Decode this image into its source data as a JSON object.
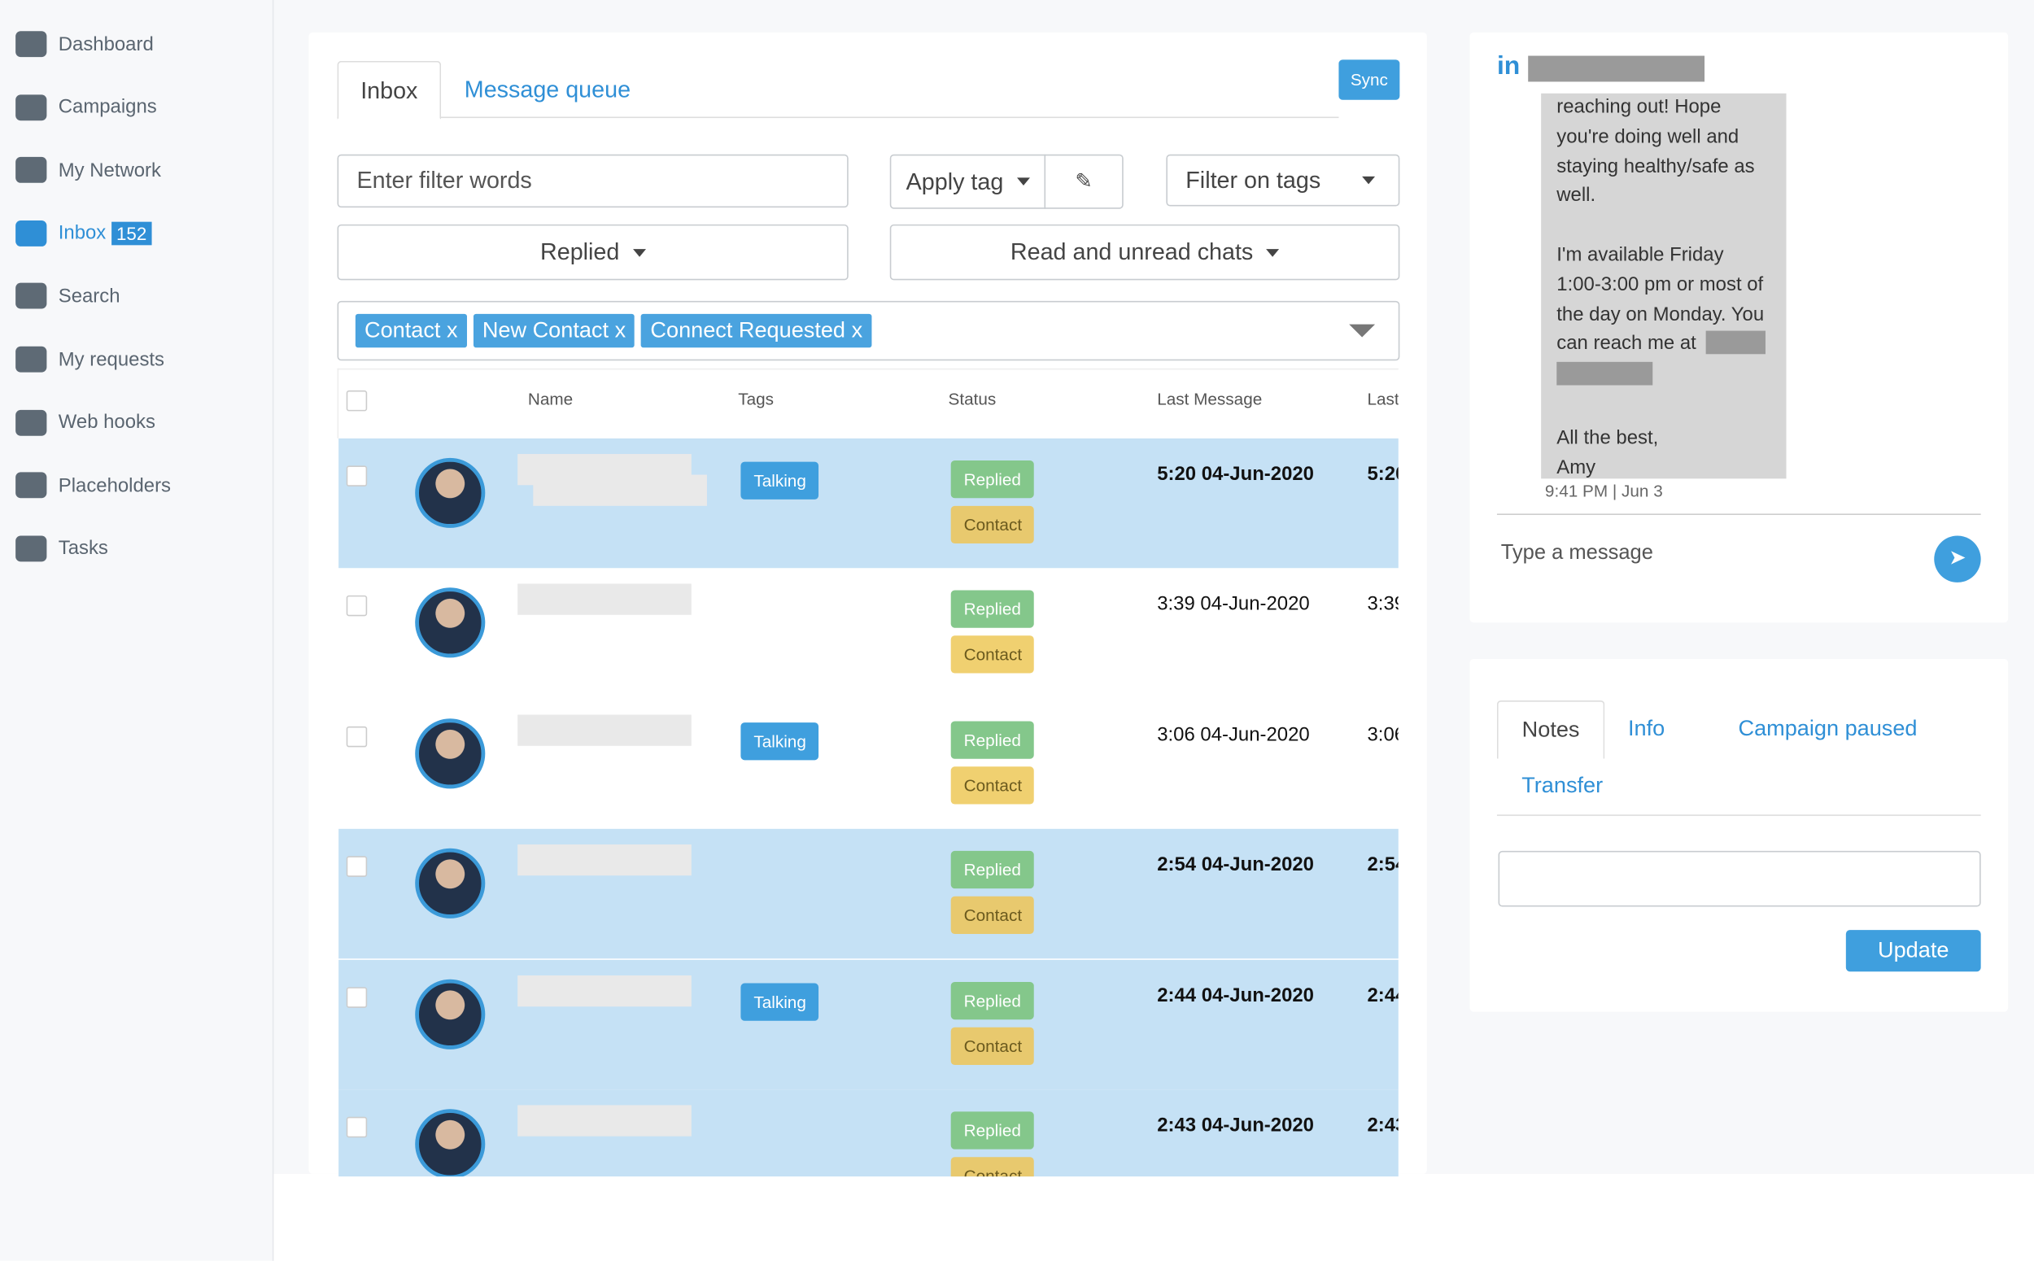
{
  "sidebar": {
    "items": [
      "Dashboard",
      "Campaigns",
      "My Network",
      "Inbox",
      "Search",
      "My requests",
      "Web hooks",
      "Placeholders",
      "Tasks"
    ],
    "inbox_count": "152"
  },
  "inbox": {
    "tabs": [
      "Inbox",
      "Message queue"
    ],
    "sync": "Sync",
    "filter_placeholder": "Enter filter words",
    "apply_tag": "Apply tag",
    "filter_tags": "Filter on tags",
    "replied_filter": "Replied",
    "read_filter": "Read and unread chats",
    "selected_tags": [
      "Contact",
      "New Contact",
      "Connect Requested"
    ],
    "tag_remove": "x",
    "columns": [
      "Name",
      "Tags",
      "Status",
      "Last Message",
      "Last"
    ],
    "rows": [
      {
        "tag": "Talking",
        "status": [
          "Replied",
          "Contact"
        ],
        "last_message": "5:20 04-Jun-2020",
        "highlighted": true
      },
      {
        "tag": null,
        "status": [
          "Replied",
          "Contact"
        ],
        "last_message": "3:39 04-Jun-2020",
        "highlighted": false
      },
      {
        "tag": "Talking",
        "status": [
          "Replied",
          "Contact"
        ],
        "last_message": "3:06 04-Jun-2020",
        "highlighted": false
      },
      {
        "tag": null,
        "status": [
          "Replied",
          "Contact"
        ],
        "last_message": "2:54 04-Jun-2020",
        "highlighted": true
      },
      {
        "tag": "Talking",
        "status": [
          "Replied",
          "Contact"
        ],
        "last_message": "2:44 04-Jun-2020",
        "highlighted": true
      },
      {
        "tag": null,
        "status": [
          "Replied",
          "Contact"
        ],
        "last_message": "2:43 04-Jun-2020",
        "highlighted": true
      }
    ]
  },
  "chat": {
    "message_before": "reaching out! Hope you're doing well and staying healthy/safe as well.\n\nI'm available Friday 1:00-3:00 pm or most of the day on Monday. You can reach me at",
    "message_after": "All the best,\nAmy",
    "meta": "9:41 PM | Jun 3",
    "input_placeholder": "Type a message"
  },
  "notes": {
    "tabs": [
      "Notes",
      "Info",
      "Campaign paused",
      "Transfer"
    ],
    "button": "Update"
  }
}
